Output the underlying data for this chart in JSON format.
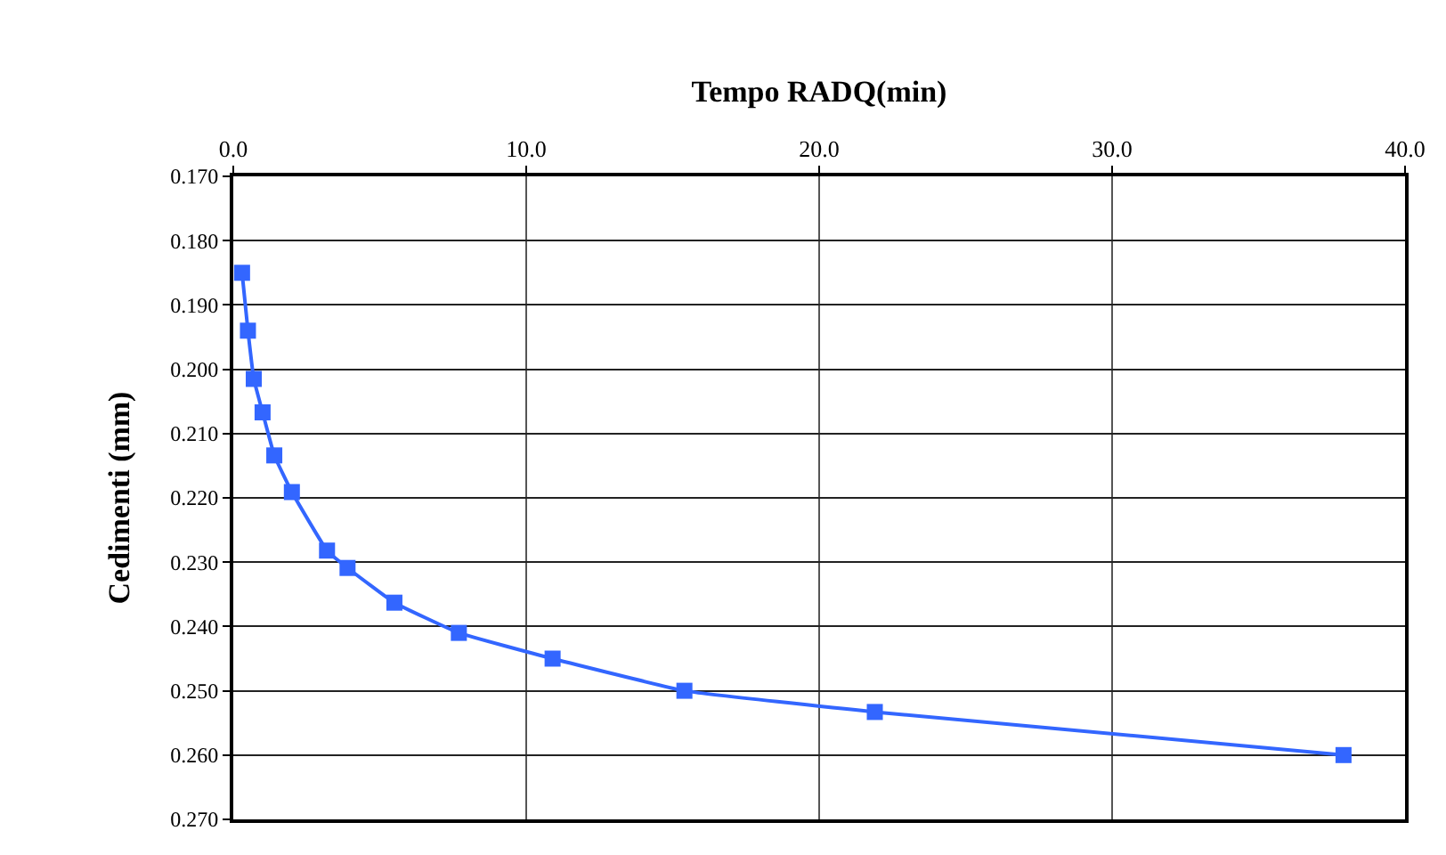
{
  "chart_data": {
    "type": "line",
    "xlabel": "Tempo RADQ(min)",
    "ylabel": "Cedimenti (mm)",
    "x": [
      0.3,
      0.5,
      0.7,
      1.0,
      1.4,
      2.0,
      3.2,
      3.9,
      5.5,
      7.7,
      10.9,
      15.4,
      21.9,
      37.9
    ],
    "series": [
      {
        "color": "#3366ff",
        "values": [
          0.185,
          0.194,
          0.2015,
          0.2067,
          0.2134,
          0.2191,
          0.2282,
          0.2309,
          0.2363,
          0.241,
          0.245,
          0.25,
          0.2533,
          0.26
        ]
      }
    ],
    "xlim": [
      0,
      40
    ],
    "xticks": [
      {
        "value": 0,
        "label": "0.0"
      },
      {
        "value": 10,
        "label": "10.0"
      },
      {
        "value": 20,
        "label": "20.0"
      },
      {
        "value": 30,
        "label": "30.0"
      },
      {
        "value": 40,
        "label": "40.0"
      }
    ],
    "ylim": [
      0.27,
      0.17
    ],
    "yticks": [
      {
        "value": 0.17,
        "label": "0.170"
      },
      {
        "value": 0.18,
        "label": "0.180"
      },
      {
        "value": 0.19,
        "label": "0.190"
      },
      {
        "value": 0.2,
        "label": "0.200"
      },
      {
        "value": 0.21,
        "label": "0.210"
      },
      {
        "value": 0.22,
        "label": "0.220"
      },
      {
        "value": 0.23,
        "label": "0.230"
      },
      {
        "value": 0.24,
        "label": "0.240"
      },
      {
        "value": 0.25,
        "label": "0.250"
      },
      {
        "value": 0.26,
        "label": "0.260"
      },
      {
        "value": 0.27,
        "label": "0.270"
      }
    ],
    "grid": true,
    "marker": "square",
    "line_style": "solid"
  }
}
